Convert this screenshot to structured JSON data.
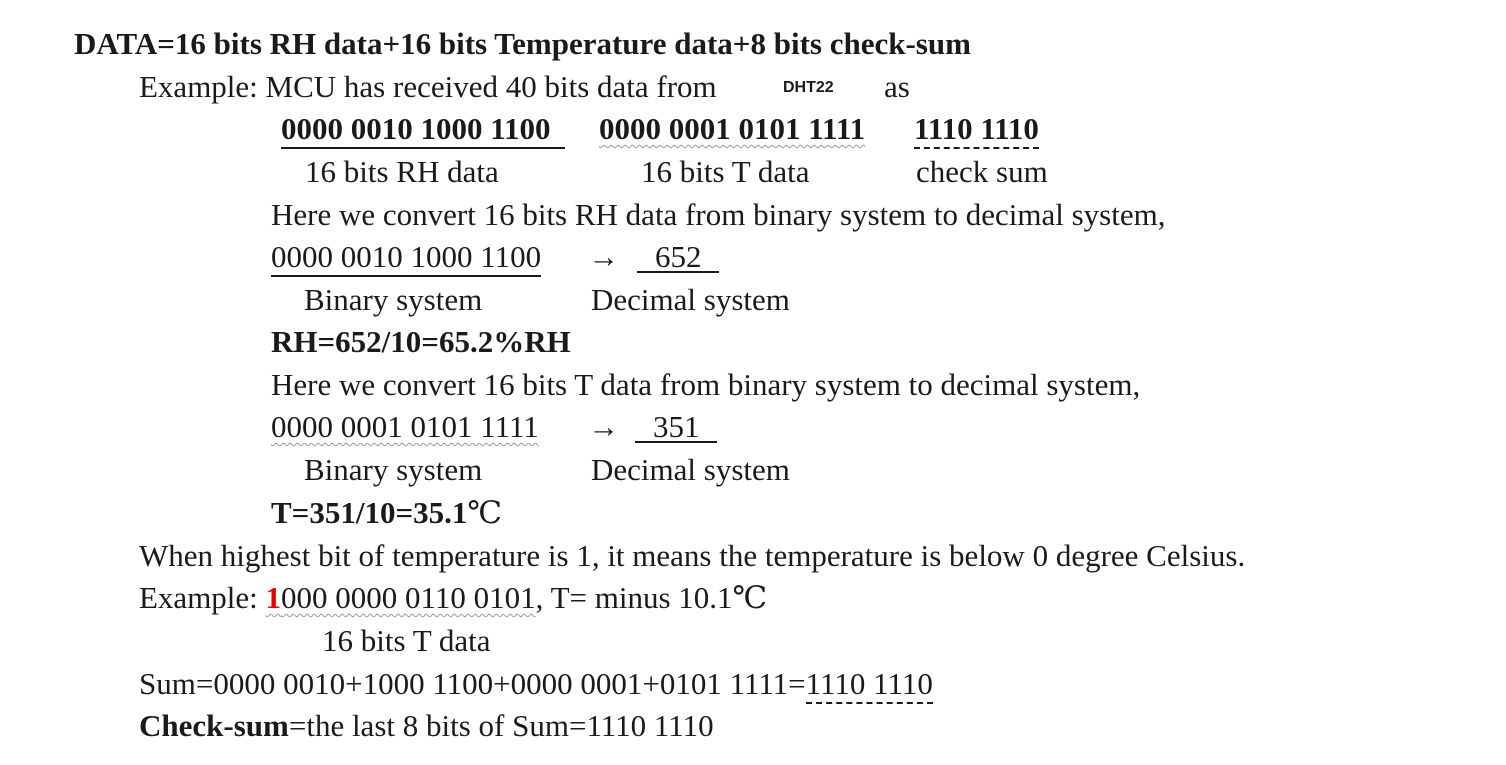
{
  "heading": "DATA=16 bits RH data+16 bits Temperature data+8 bits check-sum",
  "example1": {
    "prefix": "Example: MCU has received 40 bits data from",
    "sensor": "DHT22",
    "suffix": "as"
  },
  "bits": {
    "rh": "0000 0010 1000 1100",
    "t": "0000 0001 0101 1111",
    "checksum": "1110 1110"
  },
  "bit_labels": {
    "rh": "16 bits RH data",
    "t": "16 bits T data",
    "checksum": "check sum"
  },
  "rh_section": {
    "intro": "Here we convert 16 bits RH data from binary system to decimal system,",
    "binary": "0000 0010 1000 1100",
    "arrow": "→",
    "decimal": "652",
    "label_binary": "Binary system",
    "label_decimal": "Decimal system",
    "result": "RH=652/10=65.2%RH"
  },
  "t_section": {
    "intro": "Here we convert 16 bits T data from binary system to decimal system,",
    "binary": "0000 0001 0101 1111",
    "arrow": "→",
    "decimal": "351",
    "label_binary": "Binary system",
    "label_decimal": "Decimal system",
    "result": "T=351/10=35.1",
    "result_unit": "℃"
  },
  "negative": {
    "statement": "When highest bit of temperature is 1, it means the temperature is below 0 degree Celsius.",
    "prefix": "Example: ",
    "first_bit": "1",
    "rest_bits": "000 0000 0110 0101",
    "suffix": ", T= minus 10.1℃",
    "label": "16 bits T data"
  },
  "sum": {
    "expression": "Sum=0000 0010+1000 1100+0000 0001+0101 1111=",
    "result": "1110 1110"
  },
  "checksum_def": {
    "term": "Check-sum",
    "definition": "=the last 8 bits of Sum=1110 1110"
  },
  "colors": {
    "text": "#1a1a1a",
    "highlight": "#e60000"
  }
}
